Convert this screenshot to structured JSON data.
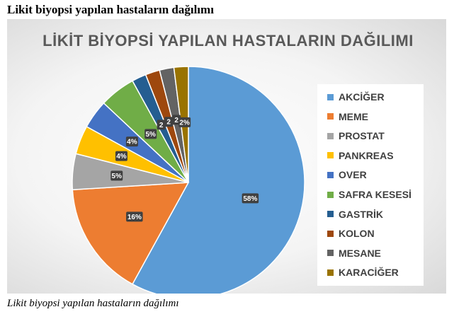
{
  "page": {
    "heading": "Likit biyopsi yapılan hastaların dağılımı",
    "caption": "Likit biyopsi yapılan hastaların dağılımı"
  },
  "chart_data": {
    "type": "pie",
    "title": "LİKİT BİYOPSİ YAPILAN HASTALARIN DAĞILIMI",
    "legend_position": "right",
    "categories": [
      "AKCİĞER",
      "MEME",
      "PROSTAT",
      "PANKREAS",
      "OVER",
      "SAFRA KESESİ",
      "GASTRİK",
      "KOLON",
      "MESANE",
      "KARACİĞER"
    ],
    "values": [
      58,
      16,
      5,
      4,
      4,
      5,
      2,
      2,
      2,
      2
    ],
    "data_labels": [
      "58%",
      "16%",
      "5%",
      "4%",
      "4%",
      "5%",
      "2",
      "2",
      "2",
      "2%"
    ],
    "colors": [
      "#5b9bd5",
      "#ed7d31",
      "#a5a5a5",
      "#ffc000",
      "#4472c4",
      "#70ad47",
      "#255e91",
      "#9e480e",
      "#636363",
      "#997300"
    ]
  }
}
